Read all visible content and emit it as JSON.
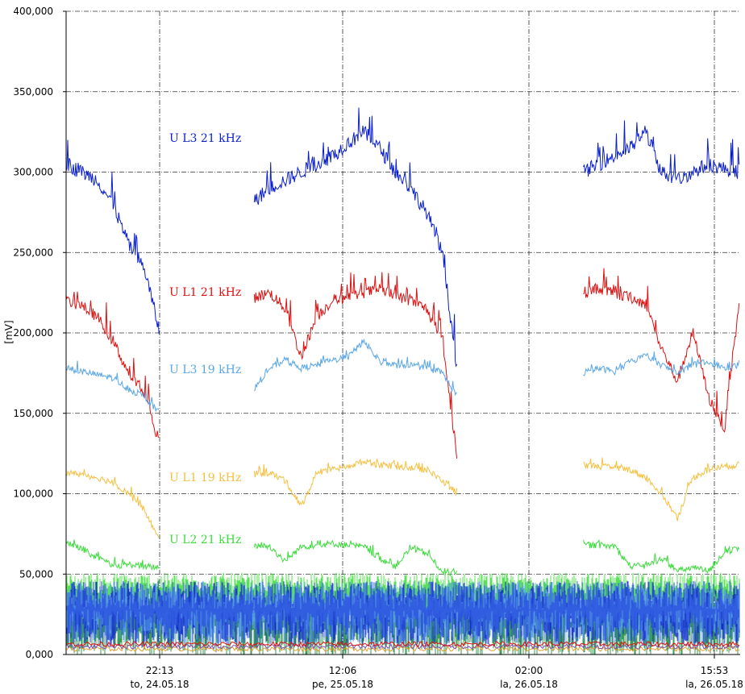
{
  "chart_data": {
    "type": "line",
    "ylabel": "[mV]",
    "ylim": [
      0,
      400000
    ],
    "y_ticks": [
      {
        "value": 0,
        "label": "0,000"
      },
      {
        "value": 50000,
        "label": "50,000"
      },
      {
        "value": 100000,
        "label": "100,000"
      },
      {
        "value": 150000,
        "label": "150,000"
      },
      {
        "value": 200000,
        "label": "200,000"
      },
      {
        "value": 250000,
        "label": "250,000"
      },
      {
        "value": 300000,
        "label": "300,000"
      },
      {
        "value": 350000,
        "label": "350,000"
      },
      {
        "value": 400000,
        "label": "400,000"
      }
    ],
    "x_ticks": [
      {
        "time": "22:13",
        "date": "to, 24.05.18"
      },
      {
        "time": "12:06",
        "date": "pe, 25.05.18"
      },
      {
        "time": "02:00",
        "date": "la, 26.05.18"
      },
      {
        "time": "15:53",
        "date": "la, 26.05.18"
      }
    ],
    "grid": true,
    "series": [
      {
        "name": "U L3 21 kHz",
        "color": "#0a1fcc",
        "values": [
          305000,
          300000,
          295000,
          280000,
          255000,
          240000,
          200000,
          null,
          null,
          null,
          null,
          null,
          282000,
          290000,
          295000,
          300000,
          305000,
          310000,
          318000,
          325000,
          315000,
          300000,
          290000,
          275000,
          250000,
          175000,
          null,
          null,
          null,
          null,
          null,
          null,
          null,
          300000,
          305000,
          310000,
          315000,
          325000,
          300000,
          295000,
          300000,
          305000,
          302000,
          300000
        ]
      },
      {
        "name": "U L1 21 kHz",
        "color": "#dd1111",
        "values": [
          220000,
          217000,
          210000,
          195000,
          175000,
          162000,
          130000,
          null,
          null,
          null,
          null,
          null,
          222000,
          225000,
          215000,
          185000,
          210000,
          220000,
          222000,
          225000,
          227000,
          223000,
          220000,
          215000,
          195000,
          120000,
          null,
          null,
          null,
          null,
          null,
          null,
          null,
          225000,
          228000,
          224000,
          222000,
          218000,
          190000,
          170000,
          200000,
          160000,
          140000,
          222000
        ]
      },
      {
        "name": "U L3 19 kHz",
        "color": "#5aa6e6",
        "values": [
          178000,
          176000,
          174000,
          172000,
          165000,
          160000,
          150000,
          null,
          null,
          null,
          null,
          null,
          165000,
          178000,
          183000,
          178000,
          180000,
          183000,
          185000,
          195000,
          182000,
          180000,
          180000,
          178000,
          175000,
          160000,
          null,
          null,
          null,
          null,
          null,
          null,
          null,
          175000,
          178000,
          176000,
          182000,
          186000,
          180000,
          175000,
          180000,
          182000,
          178000,
          180000
        ]
      },
      {
        "name": "U L1 19 kHz",
        "color": "#f5c040",
        "values": [
          113000,
          112000,
          110000,
          107000,
          100000,
          90000,
          70000,
          null,
          null,
          null,
          null,
          null,
          112000,
          113000,
          108000,
          92000,
          112000,
          115000,
          117000,
          120000,
          118000,
          117000,
          116000,
          115000,
          108000,
          100000,
          null,
          null,
          null,
          null,
          null,
          null,
          null,
          118000,
          117000,
          116000,
          115000,
          110000,
          100000,
          85000,
          110000,
          115000,
          117000,
          118000
        ]
      },
      {
        "name": "U L2 21 kHz",
        "color": "#3ddc3d",
        "values": [
          70000,
          66000,
          60000,
          55000,
          56000,
          55000,
          54000,
          null,
          null,
          null,
          null,
          null,
          68000,
          67000,
          58000,
          67000,
          68000,
          69000,
          68000,
          67000,
          60000,
          55000,
          66000,
          63000,
          52000,
          50000,
          null,
          null,
          null,
          null,
          null,
          null,
          null,
          68000,
          68000,
          67000,
          55000,
          55000,
          60000,
          52000,
          54000,
          52000,
          63000,
          66000
        ]
      }
    ]
  }
}
